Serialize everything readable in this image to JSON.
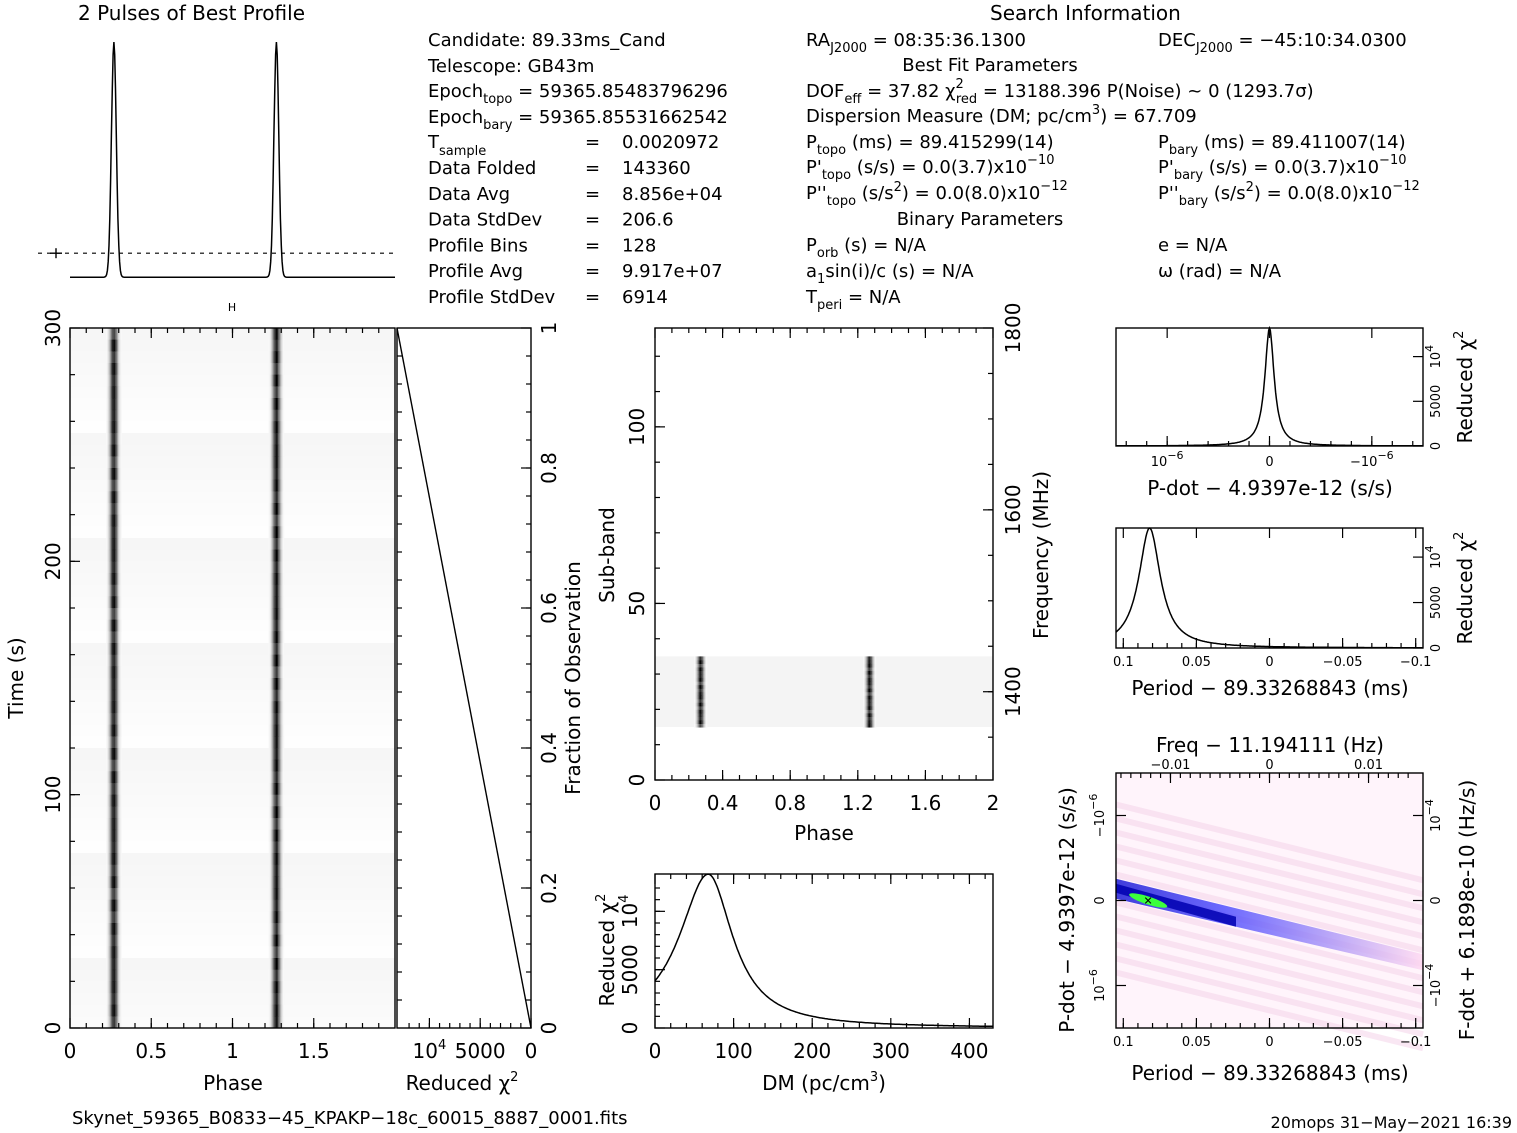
{
  "profile": {
    "title": "2 Pulses of Best Profile"
  },
  "search_info": {
    "title": "Search Information",
    "candidate": "Candidate:  89.33ms_Cand",
    "telescope": "Telescope:  GB43m",
    "epoch_topo_pre": "Epoch",
    "epoch_topo_sub": "topo",
    "epoch_topo_val": " = 59365.85483796296",
    "epoch_bary_pre": "Epoch",
    "epoch_bary_sub": "bary",
    "epoch_bary_val": " = 59365.85531662542",
    "t_sample_pre": "T",
    "t_sample_sub": "sample",
    "t_sample_eq": "=",
    "t_sample_val": "0.0020972",
    "stats": [
      {
        "label": "Data Folded",
        "eq": "=",
        "value": "143360"
      },
      {
        "label": "Data Avg",
        "eq": "=",
        "value": "8.856e+04"
      },
      {
        "label": "Data StdDev",
        "eq": "=",
        "value": "206.6"
      },
      {
        "label": "Profile Bins",
        "eq": "=",
        "value": "128"
      },
      {
        "label": "Profile Avg",
        "eq": "=",
        "value": "9.917e+07"
      },
      {
        "label": "Profile StdDev",
        "eq": "=",
        "value": "6914"
      }
    ],
    "ra_pre": "RA",
    "ra_sub": "J2000",
    "ra_val": " = 08:35:36.1300",
    "dec_pre": "DEC",
    "dec_sub": "J2000",
    "dec_val": " = −45:10:34.0300",
    "best_fit_title": "Best Fit Parameters",
    "dof_pre": "DOF",
    "dof_sub": "eff",
    "dof_val": " = 37.82  ",
    "chi_sym": "χ",
    "chi_sup": "2",
    "chi_sub": "red",
    "chi_val": " = 13188.396   P(Noise) ~ 0    (1293.7σ)",
    "dm_line_pre": "Dispersion Measure (DM; pc/cm",
    "dm_line_sup": "3",
    "dm_line_post": ") = 67.709",
    "ptopo_pre": "P",
    "ptopo_sub": "topo",
    "ptopo_val": " (ms) =  89.415299(14)",
    "pbary_pre": "P",
    "pbary_sub": "bary",
    "pbary_val": " (ms) =  89.411007(14)",
    "pdtopo_pre": "P'",
    "pdtopo_sub": "topo",
    "pdtopo_val": " (s/s) = 0.0(3.7)x10",
    "pdtopo_exp": "−10",
    "pdbary_pre": "P'",
    "pdbary_sub": "bary",
    "pdbary_val": " (s/s) = 0.0(3.7)x10",
    "pdbary_exp": "−10",
    "pddtopo_pre": "P''",
    "pddtopo_sub": "topo",
    "pddtopo_val1": " (s/s",
    "pddtopo_sup2": "2",
    "pddtopo_val2": ") = 0.0(8.0)x10",
    "pddtopo_exp": "−12",
    "pddbary_pre": "P''",
    "pddbary_sub": "bary",
    "pddbary_val1": " (s/s",
    "pddbary_sup2": "2",
    "pddbary_val2": ") = 0.0(8.0)x10",
    "pddbary_exp": "−12",
    "binary_title": "Binary Parameters",
    "porb_pre": "P",
    "porb_sub": "orb",
    "porb_val": " (s) = N/A",
    "asini_pre": "a",
    "asini_sub": "1",
    "asini_val": "sin(i)/c (s) = N/A",
    "tperi_pre": "T",
    "tperi_sub": "peri",
    "tperi_val": " = N/A",
    "ecc": "e = N/A",
    "omega": "ω (rad) = N/A"
  },
  "footer": {
    "filename": "Skynet_59365_B0833−45_KPAKP−18c_60015_8887_0001.fits",
    "stamp": "20mops 31−May−2021 16:39"
  },
  "colors": {
    "axis": "#000000",
    "greyscale_background": "#ffffff",
    "greyscale_peak": "#000000",
    "pp_low": "#ffffff",
    "pp_mid": "#ffd6f0",
    "pp_blue": "#3a3aff",
    "pp_deep": "#0000d0",
    "pp_peak": "#3cff3c"
  },
  "chart_data": [
    {
      "id": "pulse_profile",
      "type": "line",
      "title": "2 Pulses of Best Profile",
      "xlabel": "",
      "ylabel": "",
      "x_range": [
        0,
        2
      ],
      "peak_phases": [
        0.27,
        1.27
      ],
      "peak_width_phase": 0.015,
      "baseline_level": 0.02,
      "mean_level": 0.12,
      "error_bar_present": true
    },
    {
      "id": "time_phase",
      "type": "heatmap",
      "xlabel": "Phase",
      "ylabel": "Time (s)",
      "x_range": [
        0,
        2
      ],
      "y_range": [
        0,
        300
      ],
      "x_ticks": [
        "0",
        "0.5",
        "1",
        "1.5"
      ],
      "y_ticks": [
        "0",
        "100",
        "200",
        "300"
      ],
      "pulse_phases": [
        0.27,
        1.27
      ],
      "colormap": "greyscale"
    },
    {
      "id": "reduced_chi2_vs_time",
      "type": "line",
      "xlabel": "Reduced χ²",
      "ylabel": "Fraction of Observation",
      "x_range": [
        13188.396,
        0
      ],
      "y_range": [
        0,
        1
      ],
      "x_ticks": [
        "10⁴",
        "5000",
        "0"
      ],
      "y_ticks": [
        "0",
        "0.2",
        "0.4",
        "0.6",
        "0.8",
        "1"
      ],
      "x_values": [
        0,
        13188.396
      ],
      "y_values": [
        0,
        1
      ]
    },
    {
      "id": "subband_phase",
      "type": "heatmap",
      "xlabel": "Phase",
      "ylabel": "Sub-band",
      "y2label": "Frequency (MHz)",
      "x_range": [
        0,
        2
      ],
      "y_range": [
        0,
        128
      ],
      "x_ticks": [
        "0",
        "0.4",
        "0.8",
        "1.2",
        "1.6",
        "2"
      ],
      "y_ticks": [
        "0",
        "50",
        "100"
      ],
      "y2_ticks": [
        "1400",
        "1600",
        "1800"
      ],
      "active_subbands": [
        15,
        35
      ],
      "pulse_phases": [
        0.27,
        1.27
      ],
      "colormap": "greyscale"
    },
    {
      "id": "dm_curve",
      "type": "line",
      "xlabel": "DM (pc/cm³)",
      "ylabel": "Reduced χ²",
      "x_range": [
        0,
        430
      ],
      "y_range": [
        0,
        13200
      ],
      "x_ticks": [
        "0",
        "100",
        "200",
        "300",
        "400"
      ],
      "y_ticks": [
        "0",
        "5000",
        "10⁴"
      ],
      "peak_dm": 67.709,
      "peak_value": 13188.396,
      "dm_0_value": 5800
    },
    {
      "id": "pdot_curve",
      "type": "line",
      "xlabel": "P-dot − 4.9397e-12 (s/s)",
      "ylabel": "Reduced χ²",
      "x_range": [
        -1.5e-06,
        1.5e-06
      ],
      "y_range": [
        0,
        13200
      ],
      "x_ticks": [
        "10⁻⁶",
        "0",
        "−10⁻⁶"
      ],
      "y_ticks": [
        "0",
        "5000",
        "10⁴"
      ],
      "peak_x": 0,
      "peak_value": 13188.396
    },
    {
      "id": "period_curve",
      "type": "line",
      "xlabel": "Period − 89.33268843 (ms)",
      "ylabel": "Reduced χ²",
      "x_range": [
        0.105,
        -0.105
      ],
      "y_range": [
        0,
        13200
      ],
      "x_ticks": [
        "0.1",
        "0.05",
        "0",
        "−0.05",
        "−0.1"
      ],
      "y_ticks": [
        "0",
        "5000",
        "10⁴"
      ],
      "peak_x": 0.082,
      "peak_value": 13188.396
    },
    {
      "id": "p_pdot_plane",
      "type": "heatmap",
      "title": "Freq − 11.194111 (Hz)",
      "xlabel": "Period − 89.33268843 (ms)",
      "ylabel": "P-dot − 4.9397e-12 (s/s)",
      "y2label": "F-dot + 6.1898e-10 (Hz/s)",
      "x_range": [
        0.105,
        -0.105
      ],
      "y_range": [
        -1.5e-06,
        1.5e-06
      ],
      "x_ticks": [
        "0.1",
        "0.05",
        "0",
        "−0.05",
        "−0.1"
      ],
      "y_ticks": [
        "10⁻⁶",
        "0",
        "−10⁻⁶"
      ],
      "top_ticks": [
        "−0.01",
        "0",
        "0.01"
      ],
      "y2_ticks": [
        "−10⁻⁴",
        "0",
        "10⁻⁴"
      ],
      "best_point": [
        0.083,
        0.0
      ]
    }
  ]
}
